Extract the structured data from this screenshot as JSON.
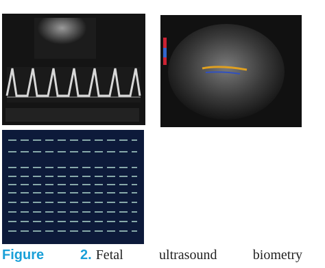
{
  "caption": {
    "label": "Figure 2.",
    "text": "Fetal ultrasound biometry"
  }
}
